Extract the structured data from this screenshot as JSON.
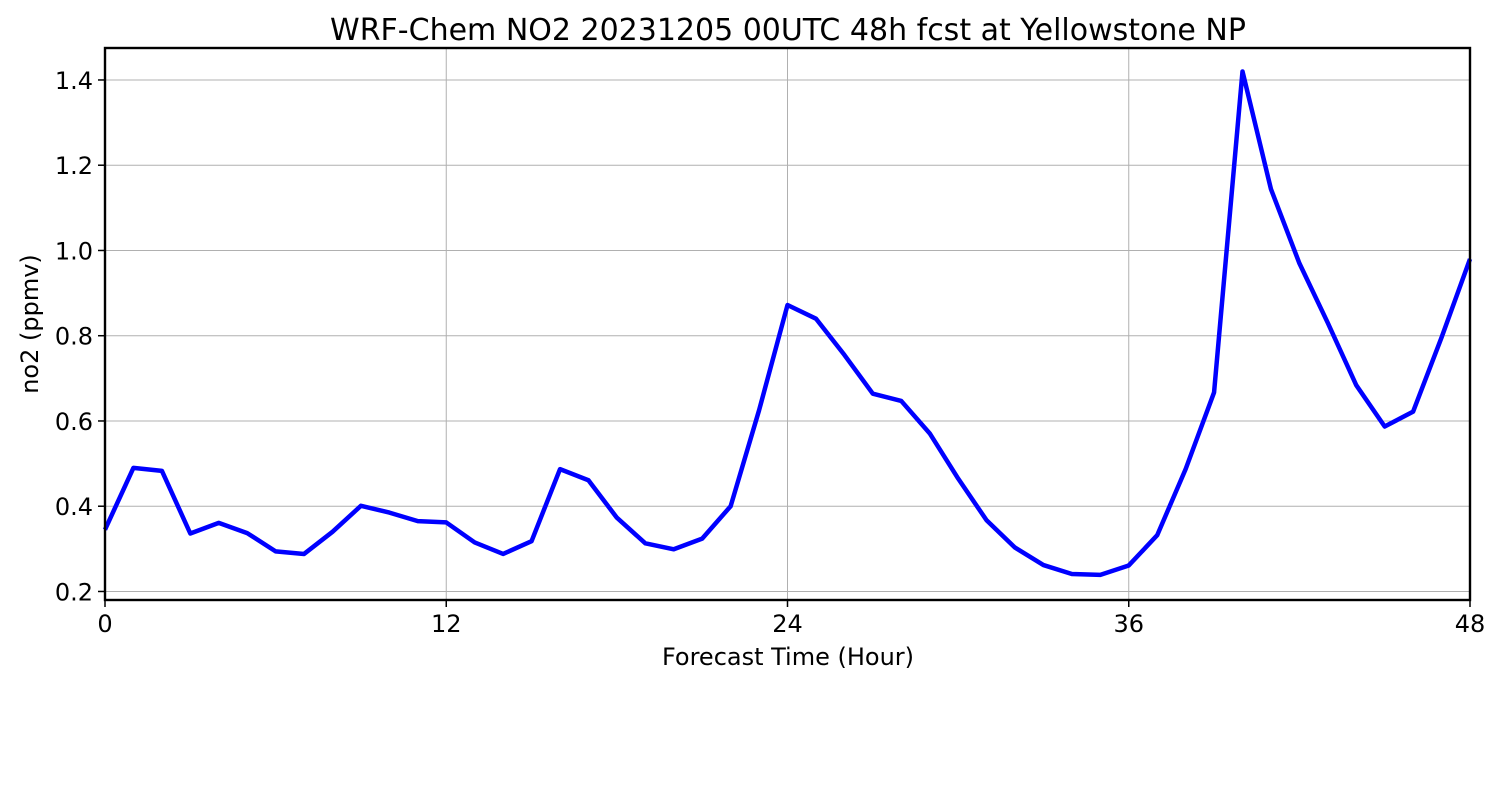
{
  "chart_data": {
    "type": "line",
    "title": "WRF-Chem NO2  20231205 00UTC 48h fcst at Yellowstone NP",
    "xlabel": "Forecast Time (Hour)",
    "ylabel": "no2  (ppmv)",
    "xlim": [
      0,
      48
    ],
    "ylim": [
      0.18,
      1.475
    ],
    "xticks": [
      0,
      12,
      24,
      36,
      48
    ],
    "yticks": [
      0.2,
      0.4,
      0.6,
      0.8,
      1.0,
      1.2,
      1.4
    ],
    "xtick_labels": [
      "0",
      "12",
      "24",
      "36",
      "48"
    ],
    "ytick_labels": [
      "0.2",
      "0.4",
      "0.6",
      "0.8",
      "1.0",
      "1.2",
      "1.4"
    ],
    "grid": true,
    "legend": "none",
    "series": [
      {
        "color": "#0000ff",
        "x": [
          0,
          1,
          2,
          3,
          4,
          5,
          6,
          7,
          8,
          9,
          10,
          11,
          12,
          13,
          14,
          15,
          16,
          17,
          18,
          19,
          20,
          21,
          22,
          23,
          24,
          25,
          26,
          27,
          28,
          29,
          30,
          31,
          32,
          33,
          34,
          35,
          36,
          37,
          38,
          39,
          40,
          41,
          42,
          43,
          44,
          45,
          46,
          47,
          48
        ],
        "values": [
          0.345,
          0.49,
          0.483,
          0.336,
          0.361,
          0.337,
          0.294,
          0.288,
          0.34,
          0.401,
          0.385,
          0.365,
          0.362,
          0.315,
          0.288,
          0.318,
          0.487,
          0.461,
          0.373,
          0.313,
          0.299,
          0.324,
          0.4,
          0.625,
          0.872,
          0.84,
          0.755,
          0.664,
          0.647,
          0.571,
          0.465,
          0.367,
          0.303,
          0.262,
          0.241,
          0.239,
          0.261,
          0.332,
          0.487,
          0.667,
          1.42,
          1.144,
          0.97,
          0.83,
          0.684,
          0.587,
          0.622,
          0.796,
          0.98
        ]
      }
    ]
  }
}
